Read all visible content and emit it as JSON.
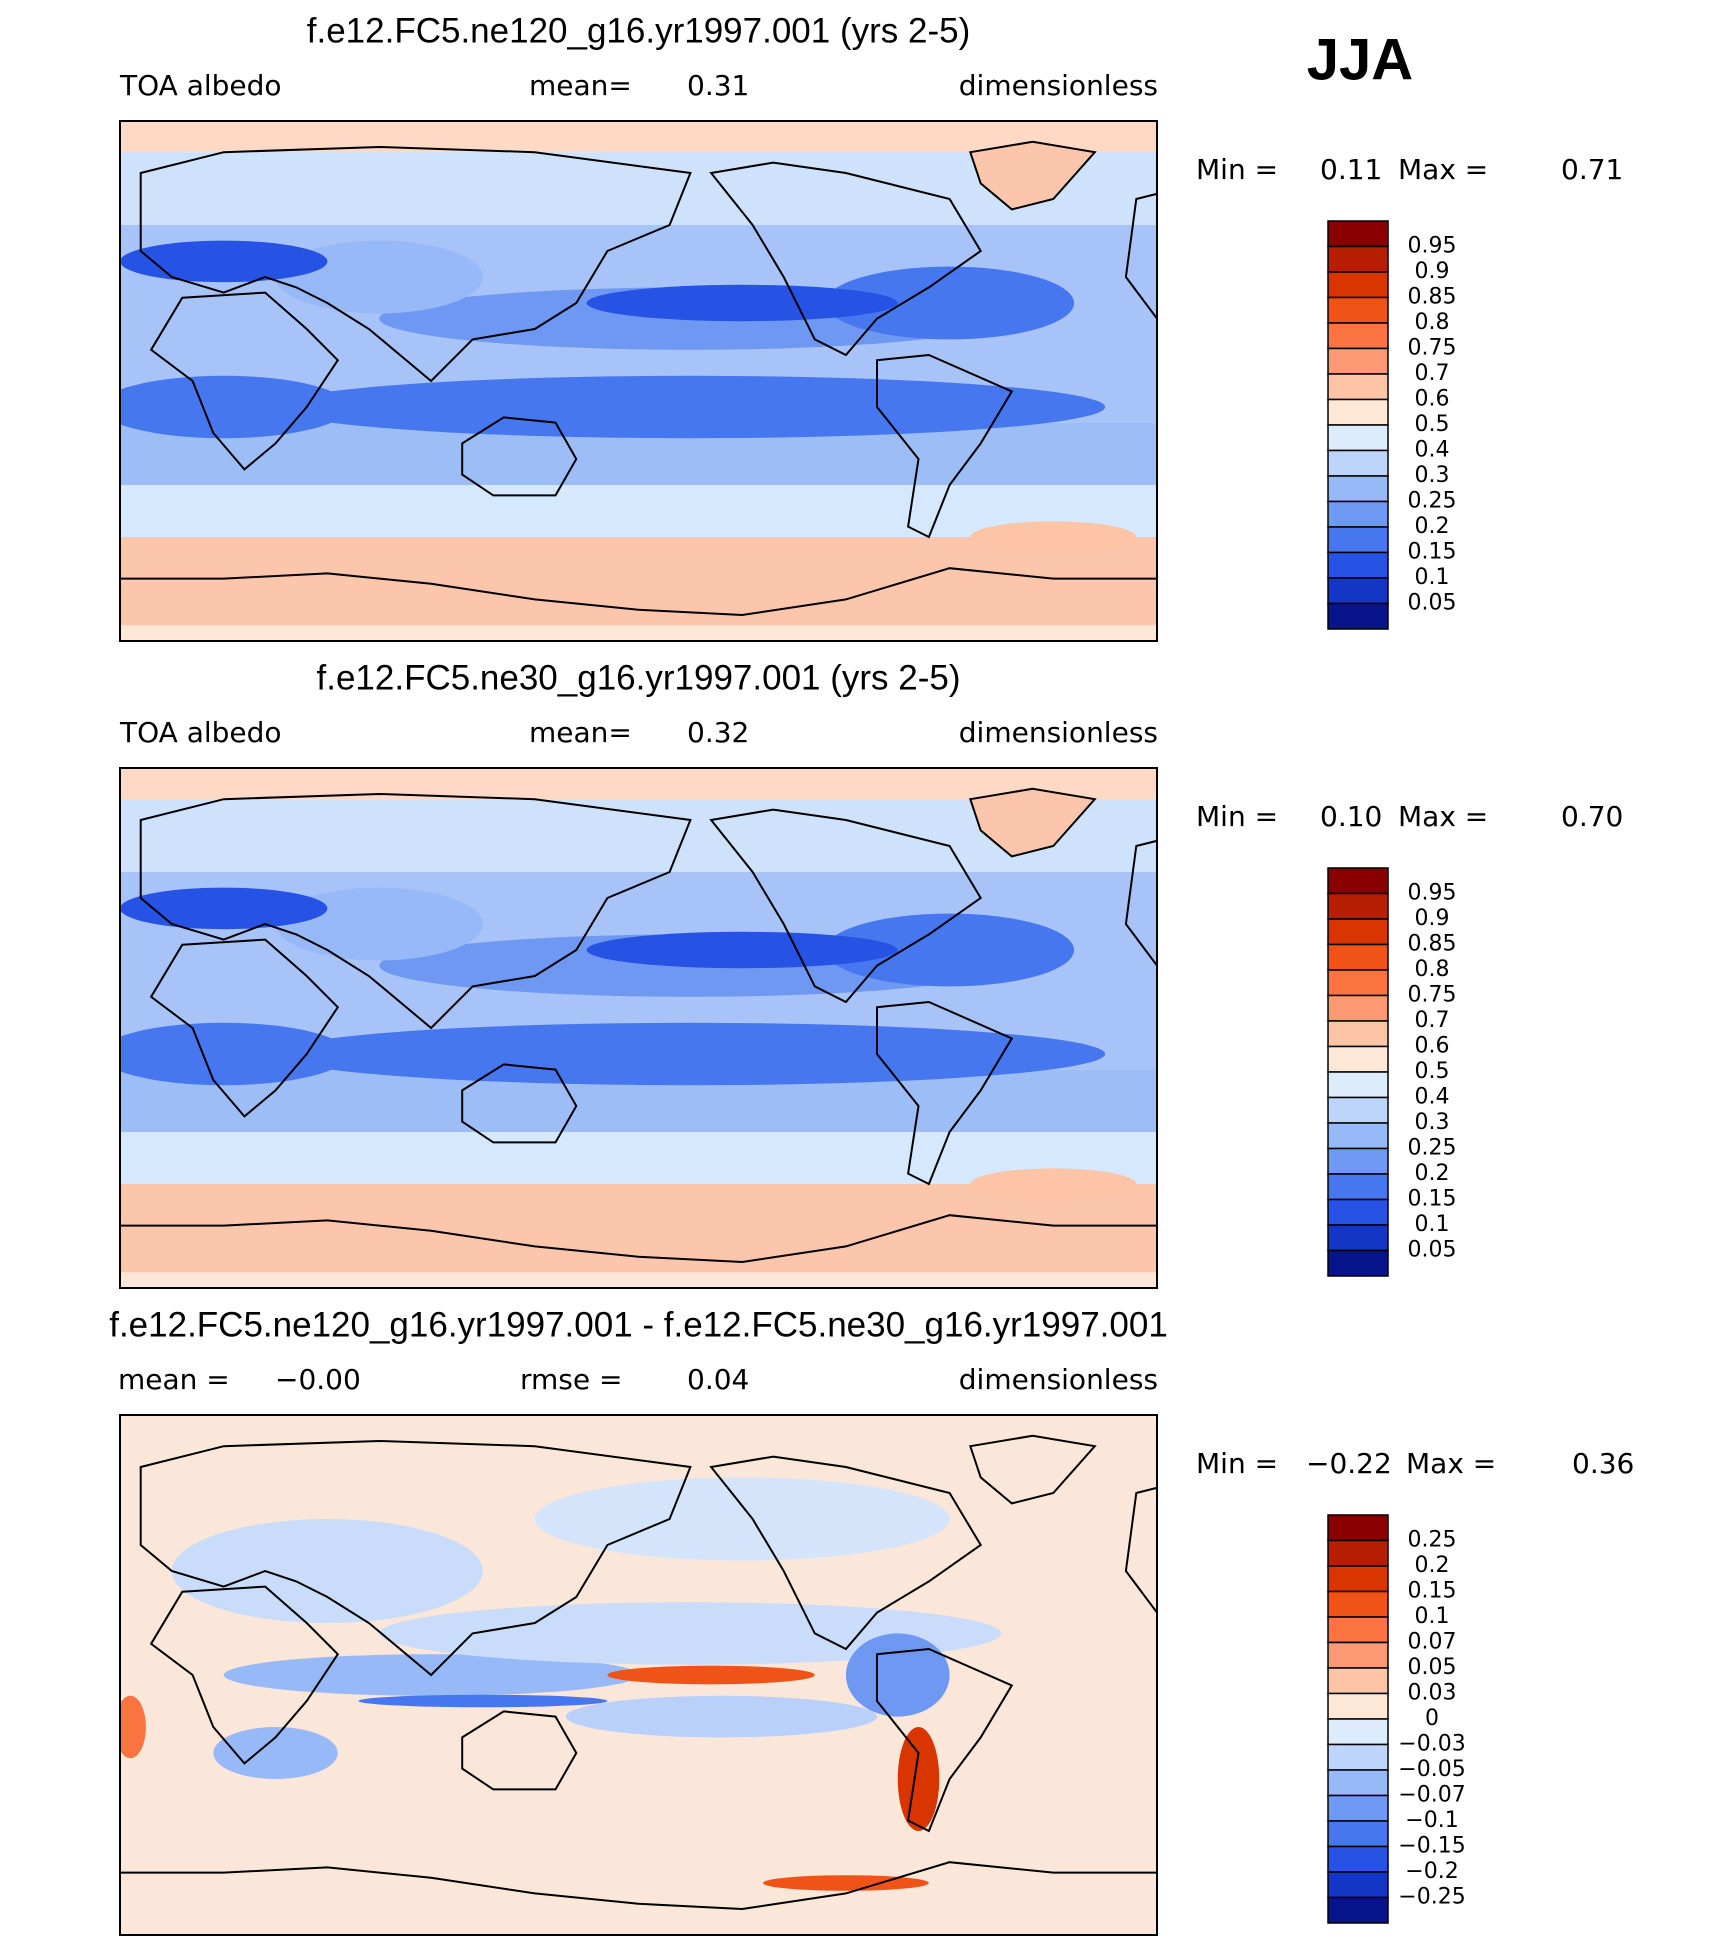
{
  "season": "JJA",
  "panels": [
    {
      "title": "f.e12.FC5.ne120_g16.yr1997.001 (yrs 2-5)",
      "subtitle_items": [
        "TOA albedo",
        "mean=",
        "0.31",
        "dimensionless"
      ],
      "range_items": [
        "Min =",
        "0.11",
        "Max =",
        "0.71"
      ],
      "kind": "field",
      "colorbar_labels": [
        "0.95",
        "0.9",
        "0.85",
        "0.8",
        "0.75",
        "0.7",
        "0.6",
        "0.5",
        "0.4",
        "0.3",
        "0.25",
        "0.2",
        "0.15",
        "0.1",
        "0.05"
      ]
    },
    {
      "title": "f.e12.FC5.ne30_g16.yr1997.001 (yrs 2-5)",
      "subtitle_items": [
        "TOA albedo",
        "mean=",
        "0.32",
        "dimensionless"
      ],
      "range_items": [
        "Min =",
        "0.10",
        "Max =",
        "0.70"
      ],
      "kind": "field",
      "colorbar_labels": [
        "0.95",
        "0.9",
        "0.85",
        "0.8",
        "0.75",
        "0.7",
        "0.6",
        "0.5",
        "0.4",
        "0.3",
        "0.25",
        "0.2",
        "0.15",
        "0.1",
        "0.05"
      ]
    },
    {
      "title": "f.e12.FC5.ne120_g16.yr1997.001 - f.e12.FC5.ne30_g16.yr1997.001",
      "subtitle_items": [
        "mean =",
        "−0.00",
        "rmse =",
        "0.04",
        "dimensionless"
      ],
      "range_items": [
        "Min =",
        "−0.22",
        "Max =",
        "0.36"
      ],
      "kind": "difference",
      "colorbar_labels": [
        "0.25",
        "0.2",
        "0.15",
        "0.1",
        "0.07",
        "0.05",
        "0.03",
        "0",
        "−0.03",
        "−0.05",
        "−0.07",
        "−0.1",
        "−0.15",
        "−0.2",
        "−0.25"
      ]
    }
  ],
  "colorbar_colors": [
    "#8a0000",
    "#b51e00",
    "#d83500",
    "#ef5318",
    "#fa7340",
    "#fb9a72",
    "#fdc4a6",
    "#fde8d8",
    "#dcecfd",
    "#bdd5fb",
    "#98b9f8",
    "#6f98f3",
    "#4777ef",
    "#2653e4",
    "#1336c4",
    "#08158a"
  ]
}
